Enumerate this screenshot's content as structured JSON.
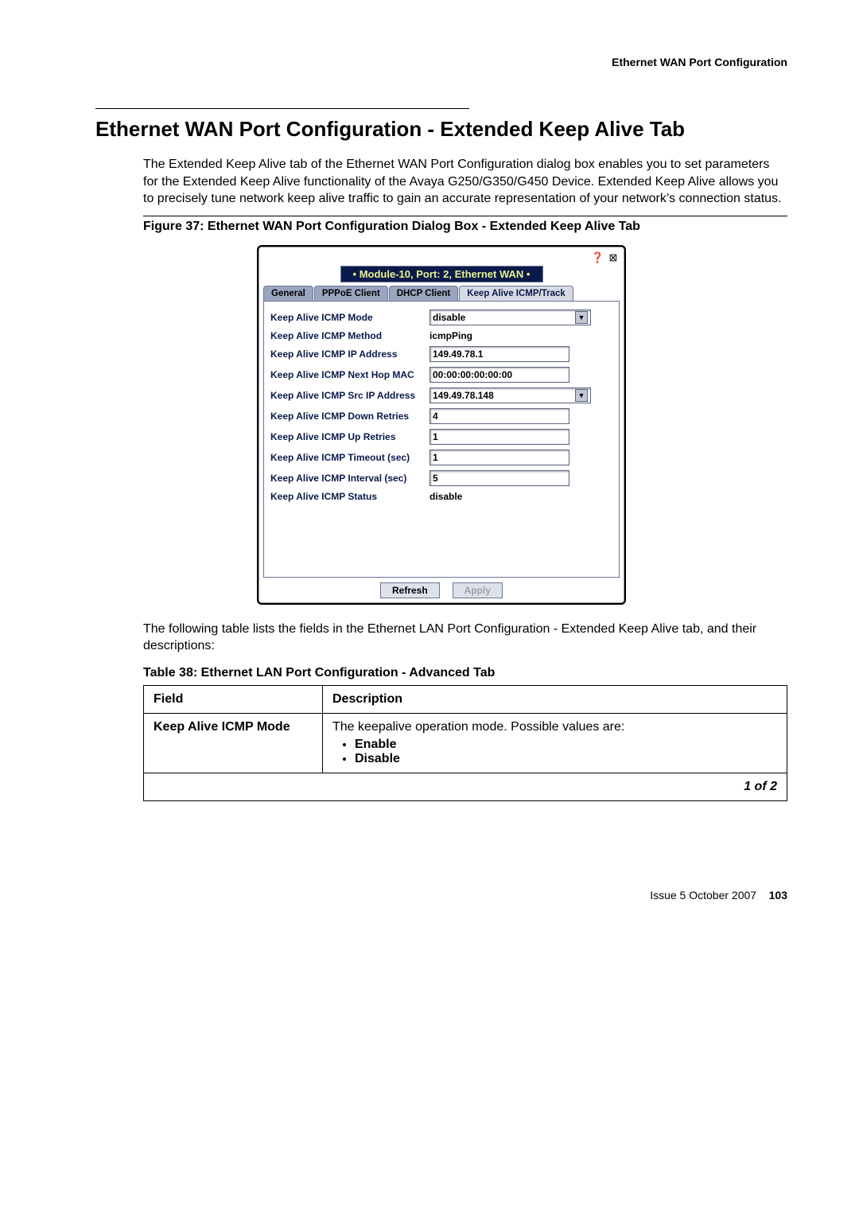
{
  "header": {
    "section_title": "Ethernet WAN Port Configuration"
  },
  "heading": "Ethernet WAN Port Configuration - Extended Keep Alive Tab",
  "intro": "The Extended Keep Alive tab of the Ethernet WAN Port Configuration dialog box enables you to set parameters for the Extended Keep Alive functionality of the Avaya G250/G350/G450 Device. Extended Keep Alive allows you to precisely tune network keep alive traffic to gain an accurate representation of your network’s connection status.",
  "figure_caption": "Figure 37: Ethernet WAN Port Configuration Dialog Box - Extended Keep Alive Tab",
  "dialog": {
    "module_label": "• Module-10, Port: 2, Ethernet WAN  •",
    "tabs": {
      "general": "General",
      "pppoe": "PPPoE Client",
      "dhcp": "DHCP Client",
      "keepalive": "Keep Alive ICMP/Track"
    },
    "rows": {
      "mode": {
        "label": "Keep Alive ICMP Mode",
        "value": "disable",
        "type": "select"
      },
      "method": {
        "label": "Keep Alive ICMP Method",
        "value": "icmpPing",
        "type": "text"
      },
      "ip": {
        "label": "Keep Alive ICMP IP Address",
        "value": "149.49.78.1",
        "type": "input"
      },
      "mac": {
        "label": "Keep Alive ICMP Next Hop MAC",
        "value": "00:00:00:00:00:00",
        "type": "input"
      },
      "srcip": {
        "label": "Keep Alive ICMP Src IP Address",
        "value": "149.49.78.148",
        "type": "select"
      },
      "downret": {
        "label": "Keep Alive ICMP Down Retries",
        "value": "4",
        "type": "input"
      },
      "upret": {
        "label": "Keep Alive ICMP Up Retries",
        "value": "1",
        "type": "input"
      },
      "timeout": {
        "label": "Keep Alive ICMP Timeout (sec)",
        "value": "1",
        "type": "input"
      },
      "interval": {
        "label": "Keep Alive ICMP Interval (sec)",
        "value": "5",
        "type": "input"
      },
      "status": {
        "label": "Keep Alive ICMP Status",
        "value": "disable",
        "type": "text"
      }
    },
    "buttons": {
      "refresh": "Refresh",
      "apply": "Apply"
    }
  },
  "post_fig_text": "The following table lists the fields in the Ethernet LAN Port Configuration - Extended Keep Alive tab, and their descriptions:",
  "table_caption": "Table 38: Ethernet LAN Port Configuration - Advanced Tab",
  "table": {
    "headers": {
      "field": "Field",
      "description": "Description"
    },
    "row1": {
      "field": "Keep Alive ICMP Mode",
      "desc": "The keepalive operation mode. Possible values are:",
      "b1": "Enable",
      "b2": "Disable"
    },
    "footer": "1 of 2"
  },
  "footer": {
    "issue": "Issue 5   October 2007",
    "page": "103"
  },
  "colors": {
    "navy": "#0a1a4a",
    "tab_inactive": "#9aa5bf",
    "tab_active": "#d6dae4",
    "yellowish": "#eaf390"
  }
}
